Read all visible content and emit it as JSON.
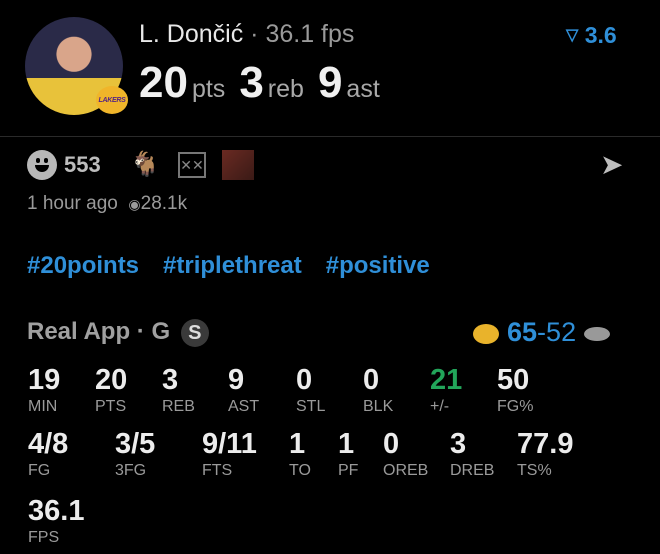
{
  "player": {
    "name": "L. Dončić",
    "separator": "·",
    "fps": "36.1 fps",
    "pts": "20",
    "pts_label": "pts",
    "reb": "3",
    "reb_label": "reb",
    "ast": "9",
    "ast_label": "ast",
    "team_badge": "LAKERS",
    "rating": "3.6",
    "rating_icon": "filter-icon"
  },
  "reactions": {
    "count": "553",
    "icons": [
      "smile-icon",
      "goat-icon",
      "basketball-net-icon",
      "image-thumbnail"
    ],
    "share_icon": "send-icon"
  },
  "meta": {
    "time": "1 hour ago",
    "views": "28.1k",
    "views_icon": "eye-icon"
  },
  "tags": [
    "#20points",
    "#triplethreat",
    "#positive"
  ],
  "game": {
    "app": "Real App",
    "separator": "·",
    "position": "G",
    "badge": "S",
    "home_score": "65",
    "dash": "-",
    "away_score": "52"
  },
  "stats_row1": [
    {
      "value": "19",
      "label": "MIN"
    },
    {
      "value": "20",
      "label": "PTS"
    },
    {
      "value": "3",
      "label": "REB"
    },
    {
      "value": "9",
      "label": "AST"
    },
    {
      "value": "0",
      "label": "STL"
    },
    {
      "value": "0",
      "label": "BLK"
    },
    {
      "value": "21",
      "label": "+/-"
    },
    {
      "value": "50",
      "label": "FG%"
    }
  ],
  "stats_row2": [
    {
      "value": "4/8",
      "label": "FG"
    },
    {
      "value": "3/5",
      "label": "3FG"
    },
    {
      "value": "9/11",
      "label": "FTS"
    },
    {
      "value": "1",
      "label": "TO"
    },
    {
      "value": "1",
      "label": "PF"
    },
    {
      "value": "0",
      "label": "OREB"
    },
    {
      "value": "3",
      "label": "DREB"
    },
    {
      "value": "77.9",
      "label": "TS%"
    }
  ],
  "stats_row3": [
    {
      "value": "36.1",
      "label": "FPS"
    }
  ],
  "colors": {
    "accent": "#2f8fd8",
    "positive": "#22a55a",
    "background": "#000000"
  }
}
